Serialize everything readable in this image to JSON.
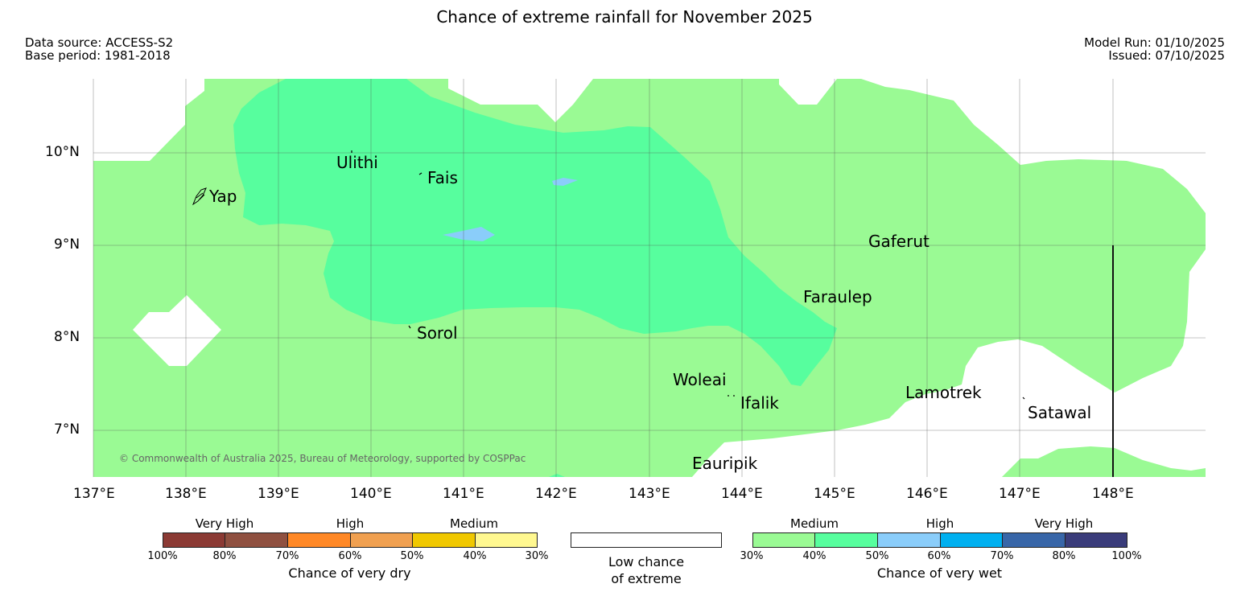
{
  "title": "Chance of extreme rainfall for November 2025",
  "meta": {
    "data_source": "Data source: ACCESS-S2",
    "base_period": "Base period: 1981-2018",
    "model_run": "Model Run: 01/10/2025",
    "issued": "Issued: 07/10/2025"
  },
  "axes": {
    "lon_labels": [
      "137°E",
      "138°E",
      "139°E",
      "140°E",
      "141°E",
      "142°E",
      "143°E",
      "144°E",
      "145°E",
      "146°E",
      "147°E",
      "148°E"
    ],
    "lat_labels": [
      "10°N",
      "9°N",
      "8°N",
      "7°N"
    ]
  },
  "places": [
    "Ulithi",
    "Fais",
    "Yap",
    "Gaferut",
    "Faraulep",
    "Sorol",
    "Woleai",
    "Ifalik",
    "Lamotrek",
    "Satawal",
    "Eauripik"
  ],
  "copyright": "© Commonwealth of Australia 2025, Bureau of Meteorology, supported by COSPPac",
  "legend": {
    "dry": {
      "categories": [
        "Very High",
        "High",
        "Medium"
      ],
      "ticks": [
        "100%",
        "80%",
        "70%",
        "60%",
        "50%",
        "40%",
        "30%"
      ],
      "colors": [
        "#8b3a34",
        "#8f5040",
        "#ff8826",
        "#f0a050",
        "#f0c800",
        "#fff890"
      ],
      "caption": "Chance of very dry"
    },
    "neutral": {
      "caption_1": "Low chance",
      "caption_2": "of extreme"
    },
    "wet": {
      "categories": [
        "Medium",
        "High",
        "Very High"
      ],
      "ticks": [
        "30%",
        "40%",
        "50%",
        "60%",
        "70%",
        "80%",
        "100%"
      ],
      "colors": [
        "#9afa94",
        "#57fe9e",
        "#8acdfa",
        "#00b0f0",
        "#3866a8",
        "#3a3c7a"
      ],
      "caption": "Chance of very wet"
    }
  },
  "colors": {
    "medium_wet": "#9afa94",
    "medium_high_wet": "#57fe9e",
    "high_wet": "#8acdfa"
  }
}
